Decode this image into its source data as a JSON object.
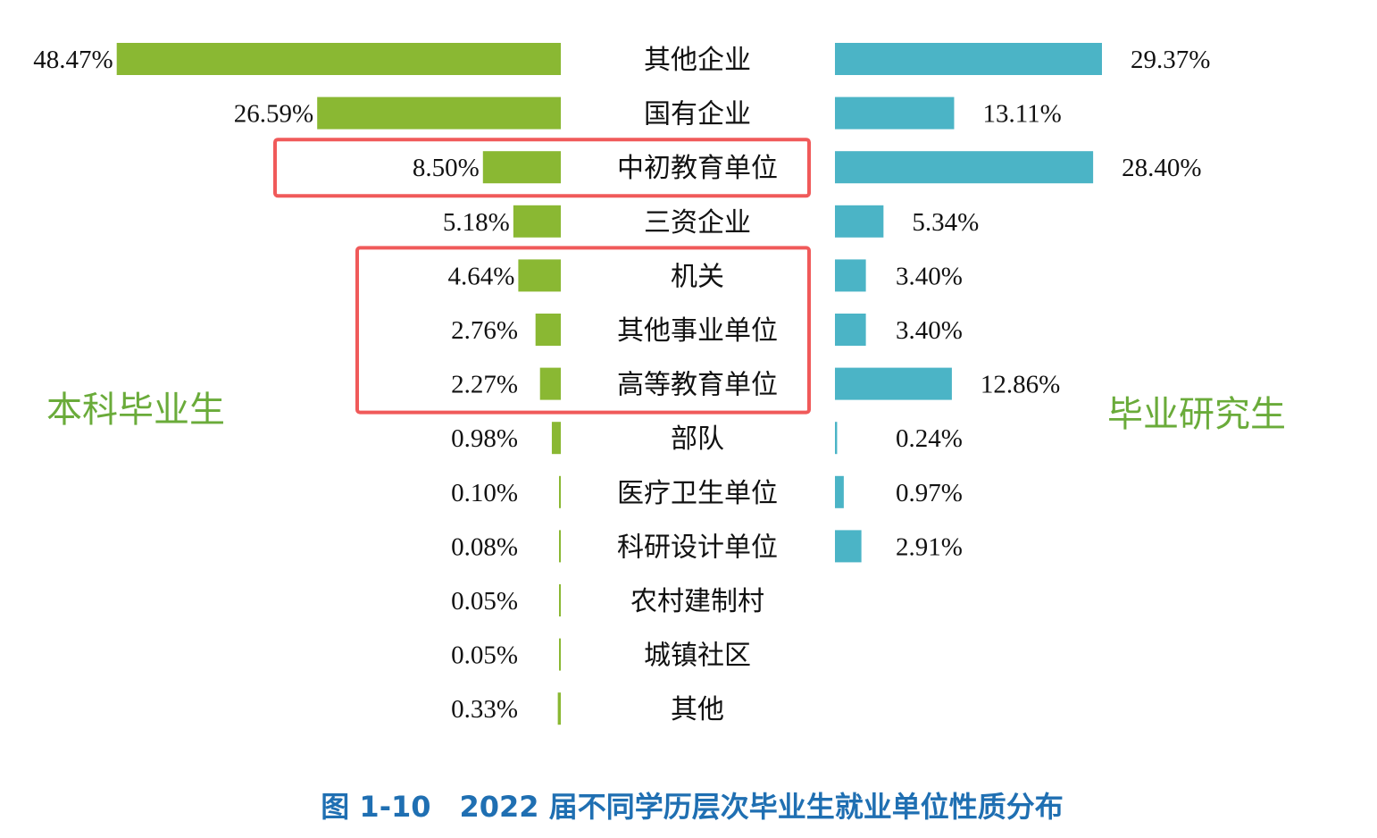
{
  "colors": {
    "undergrad": "#8ab833",
    "grad": "#4bb4c6",
    "highlight": "#f05a5a",
    "side_label": "#6aab3a",
    "caption": "#1f6fb2"
  },
  "chart_data": {
    "type": "bar",
    "orientation": "horizontal",
    "layout": "back-to-back",
    "categories": [
      "其他企业",
      "国有企业",
      "中初教育单位",
      "三资企业",
      "机关",
      "其他事业单位",
      "高等教育单位",
      "部队",
      "医疗卫生单位",
      "科研设计单位",
      "农村建制村",
      "城镇社区",
      "其他"
    ],
    "series": [
      {
        "name": "本科毕业生",
        "values": [
          48.47,
          26.59,
          8.5,
          5.18,
          4.64,
          2.76,
          2.27,
          0.98,
          0.1,
          0.08,
          0.05,
          0.05,
          0.33
        ],
        "labels": [
          "48.47%",
          "26.59%",
          "8.50%",
          "5.18%",
          "4.64%",
          "2.76%",
          "2.27%",
          "0.98%",
          "0.10%",
          "0.08%",
          "0.05%",
          "0.05%",
          "0.33%"
        ]
      },
      {
        "name": "毕业研究生",
        "values": [
          29.37,
          13.11,
          28.4,
          5.34,
          3.4,
          3.4,
          12.86,
          0.24,
          0.97,
          2.91,
          null,
          null,
          null
        ],
        "labels": [
          "29.37%",
          "13.11%",
          "28.40%",
          "5.34%",
          "3.40%",
          "3.40%",
          "12.86%",
          "0.24%",
          "0.97%",
          "2.91%",
          null,
          null,
          null
        ]
      }
    ],
    "highlighted_categories": [
      "中初教育单位",
      "机关",
      "其他事业单位",
      "高等教育单位"
    ],
    "unit": "%",
    "caption": "图 1-10　2022 届不同学历层次毕业生就业单位性质分布"
  }
}
